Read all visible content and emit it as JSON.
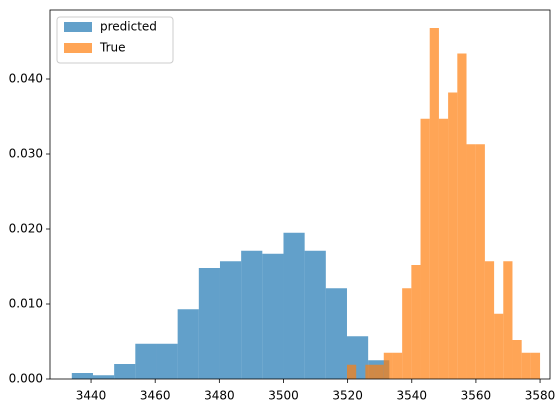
{
  "chart_data": {
    "type": "histogram",
    "series": [
      {
        "name": "predicted",
        "color": "#1f77b4",
        "opacity": 0.7,
        "bins": [
          3434,
          3440.6,
          3447.2,
          3453.8,
          3460.4,
          3467,
          3473.6,
          3480.2,
          3486.8,
          3493.4,
          3500,
          3506.6,
          3513.2,
          3519.8,
          3526.4,
          3533
        ],
        "values": [
          0.0008,
          0.0005,
          0.002,
          0.0047,
          0.0047,
          0.0093,
          0.0148,
          0.0157,
          0.0171,
          0.0167,
          0.0195,
          0.0171,
          0.0121,
          0.0057,
          0.0025
        ]
      },
      {
        "name": "True",
        "color": "#ff7f0e",
        "opacity": 0.7,
        "bins": [
          3519.8,
          3522.67,
          3525.53,
          3528.4,
          3531.27,
          3534.13,
          3537.0,
          3539.87,
          3542.73,
          3545.6,
          3548.47,
          3551.33,
          3554.2,
          3557.07,
          3559.93,
          3562.8,
          3565.67,
          3568.53,
          3571.4,
          3574.27,
          3577.13,
          3580.0
        ],
        "values": [
          0.0019,
          0,
          0.0019,
          0.0019,
          0.0035,
          0.0035,
          0.0121,
          0.0152,
          0.0347,
          0.0468,
          0.0347,
          0.0382,
          0.0434,
          0.0313,
          0.0313,
          0.0157,
          0.0087,
          0.0157,
          0.0052,
          0.0035,
          0.0035
        ]
      }
    ],
    "xlim": [
      3427.2,
      3583.1
    ],
    "xticks": [
      3440,
      3460,
      3480,
      3500,
      3520,
      3540,
      3560,
      3580
    ],
    "ylim": [
      0,
      0.0492
    ],
    "yticks": [
      {
        "value": 0,
        "label": "0.000"
      },
      {
        "value": 0.01,
        "label": "0.010"
      },
      {
        "value": 0.02,
        "label": "0.020"
      },
      {
        "value": 0.03,
        "label": "0.030"
      },
      {
        "value": 0.04,
        "label": "0.040"
      }
    ],
    "legend": "upper left"
  }
}
